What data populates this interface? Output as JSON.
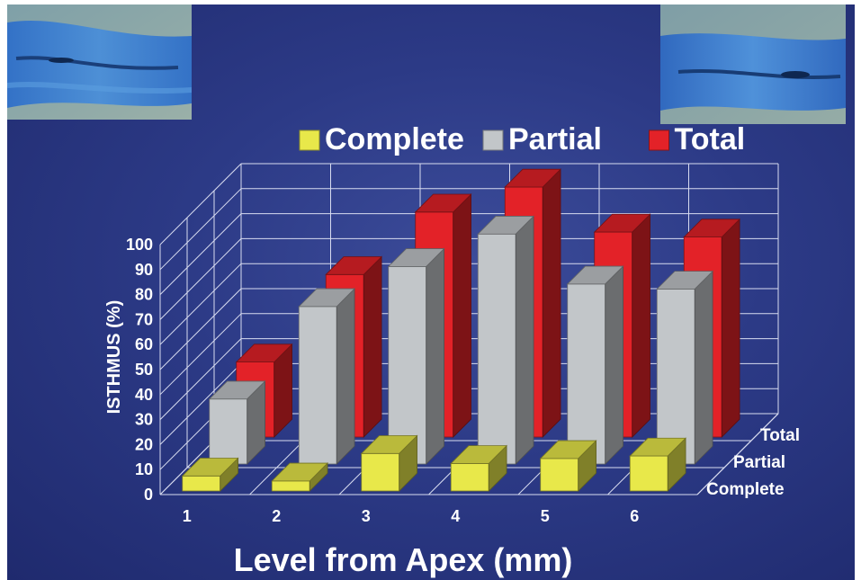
{
  "chart_data": {
    "type": "bar",
    "categories": [
      "1",
      "2",
      "3",
      "4",
      "5",
      "6"
    ],
    "series": [
      {
        "name": "Complete",
        "values": [
          6,
          4,
          15,
          11,
          13,
          14
        ],
        "color": "#e8e84a"
      },
      {
        "name": "Partial",
        "values": [
          26,
          63,
          79,
          92,
          72,
          70
        ],
        "color": "#c2c6c9"
      },
      {
        "name": "Total",
        "values": [
          30,
          65,
          90,
          100,
          82,
          80
        ],
        "color": "#e32228"
      }
    ],
    "xlabel": "Level from Apex (mm)",
    "ylabel": "ISTHMUS (%)",
    "ylim": [
      0,
      100
    ],
    "yticks": [
      0,
      10,
      20,
      30,
      40,
      50,
      60,
      70,
      80,
      90,
      100
    ],
    "depth_labels": [
      "Total",
      "Partial",
      "Complete"
    ],
    "legend_position": "top",
    "grid": true
  },
  "images": {
    "left_photo": "micrograph-photo",
    "right_photo": "micrograph-photo"
  }
}
